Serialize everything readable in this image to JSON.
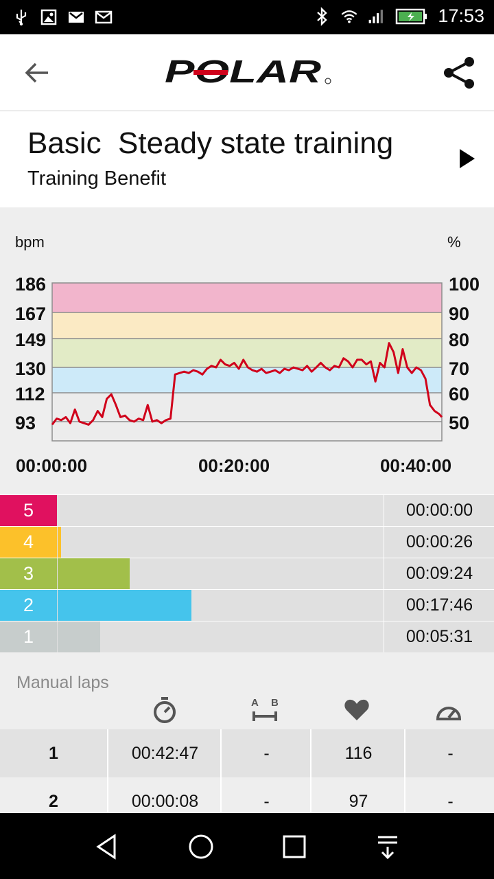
{
  "status_bar": {
    "time": "17:53",
    "left_icons": [
      "usb-icon",
      "image-icon",
      "gmail-icon",
      "mail-icon"
    ],
    "right_icons": [
      "bluetooth-icon",
      "wifi-icon",
      "signal-icon",
      "battery-charging-icon"
    ]
  },
  "app_bar": {
    "back_icon": "arrow-back-icon",
    "logo_text": "POLAR",
    "share_icon": "share-icon"
  },
  "training": {
    "title": "Basic  Steady state training",
    "subtitle": "Training Benefit",
    "play_icon": "play-icon"
  },
  "chart_data": {
    "type": "line",
    "left_unit": "bpm",
    "right_unit": "%",
    "left_ticks": [
      "186",
      "167",
      "149",
      "130",
      "112",
      "93"
    ],
    "right_ticks": [
      "100",
      "90",
      "80",
      "70",
      "60",
      "50"
    ],
    "x_ticks": [
      "00:00:00",
      "00:20:00",
      "00:40:00"
    ],
    "xlim_minutes": [
      0,
      42.8
    ],
    "ylim_bpm": [
      88,
      186
    ],
    "zone_boundaries_bpm": [
      186,
      167,
      149,
      130,
      112,
      93
    ],
    "zone_colors": [
      "#f2b5cc",
      "#fbeac4",
      "#e2ebc6",
      "#cdeaf9",
      "#eaeaea"
    ],
    "line_color": "#d0021b",
    "series": [
      {
        "x": [
          0,
          0.5,
          1,
          1.5,
          2,
          2.5,
          3,
          3.5,
          4,
          4.5,
          5,
          5.5,
          6,
          6.5,
          7,
          7.5,
          8,
          8.5,
          9,
          9.5,
          10,
          10.5,
          11,
          11.5,
          12,
          12.5,
          13,
          13.5,
          14,
          14.5,
          15,
          15.5,
          16,
          16.5,
          17,
          17.5,
          18,
          18.5,
          19,
          19.5,
          20,
          20.5,
          21,
          21.5,
          22,
          22.5,
          23,
          23.5,
          24,
          24.5,
          25,
          25.5,
          26,
          26.5,
          27,
          27.5,
          28,
          28.5,
          29,
          29.5,
          30,
          30.5,
          31,
          31.5,
          32,
          32.5,
          33,
          33.5,
          34,
          34.5,
          35,
          35.5,
          36,
          36.5,
          37,
          37.5,
          38,
          38.5,
          39,
          39.5,
          40,
          40.5,
          41,
          41.5,
          42,
          42.5,
          42.8
        ],
        "y": [
          91,
          95,
          94,
          96,
          92,
          101,
          93,
          92,
          91,
          94,
          100,
          96,
          108,
          111,
          104,
          96,
          97,
          94,
          93,
          95,
          94,
          104,
          93,
          94,
          92,
          94,
          95,
          125,
          126,
          127,
          126,
          128,
          127,
          125,
          129,
          131,
          130,
          135,
          132,
          131,
          133,
          129,
          135,
          130,
          128,
          127,
          129,
          126,
          127,
          128,
          126,
          129,
          128,
          130,
          129,
          128,
          131,
          127,
          130,
          133,
          130,
          128,
          131,
          130,
          136,
          134,
          130,
          135,
          135,
          132,
          134,
          120,
          133,
          130,
          146,
          140,
          126,
          142,
          130,
          126,
          130,
          128,
          122,
          104,
          100,
          98,
          96
        ]
      }
    ]
  },
  "zones": [
    {
      "label": "5",
      "time": "00:00:00",
      "fraction": 0.0,
      "color": "#e0115f"
    },
    {
      "label": "4",
      "time": "00:00:26",
      "fraction": 0.01,
      "color": "#fcc12a"
    },
    {
      "label": "3",
      "time": "00:09:24",
      "fraction": 0.22,
      "color": "#a2bf4a"
    },
    {
      "label": "2",
      "time": "00:17:46",
      "fraction": 0.41,
      "color": "#45c4ec"
    },
    {
      "label": "1",
      "time": "00:05:31",
      "fraction": 0.13,
      "color": "#c7cdcc"
    }
  ],
  "manual_laps": {
    "title": "Manual laps",
    "column_icons": [
      "stopwatch-icon",
      "distance-ab-icon",
      "heart-icon",
      "speedometer-icon"
    ],
    "rows": [
      {
        "lap": "1",
        "duration": "00:42:47",
        "distance": "-",
        "heart_rate": "116",
        "speed": "-"
      },
      {
        "lap": "2",
        "duration": "00:00:08",
        "distance": "-",
        "heart_rate": "97",
        "speed": "-"
      }
    ]
  },
  "nav_bar": {
    "icons": [
      "back-triangle-icon",
      "home-circle-icon",
      "recents-square-icon",
      "notifications-down-icon"
    ]
  }
}
